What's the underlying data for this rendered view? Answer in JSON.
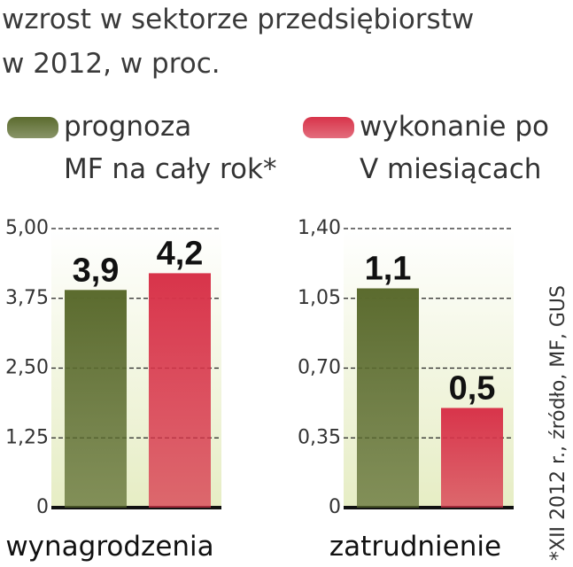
{
  "title": [
    "wzrost w sektorze przedsiębiorstw",
    "w 2012,  w proc."
  ],
  "legend": [
    {
      "lines": [
        "prognoza",
        "MF na cały rok*"
      ],
      "color": "#5b6b2e"
    },
    {
      "lines": [
        "wykonanie po",
        "V miesiącach"
      ],
      "color": "#d8344a"
    }
  ],
  "note": "*XII 2012 r., źródło, MF, GUS",
  "chart_data": [
    {
      "type": "bar",
      "xlabel": "wynagrodzenia",
      "values": [
        3.9,
        4.2
      ],
      "value_labels": [
        "3,9",
        "4,2"
      ],
      "colors": [
        "#5b6b2e",
        "#d8344a"
      ],
      "ylim": [
        0,
        5
      ],
      "yticks": [
        0,
        {
          "value": 1.25,
          "label": "1,25"
        },
        {
          "value": 2.5,
          "label": "2,50"
        },
        {
          "value": 3.75,
          "label": "3,75"
        },
        {
          "value": 5,
          "label": "5,00"
        }
      ],
      "grid": true
    },
    {
      "type": "bar",
      "xlabel": "zatrudnienie",
      "values": [
        1.1,
        0.5
      ],
      "value_labels": [
        "1,1",
        "0,5"
      ],
      "colors": [
        "#5b6b2e",
        "#d8344a"
      ],
      "ylim": [
        0,
        1.4
      ],
      "yticks": [
        0,
        {
          "value": 0.35,
          "label": "0,35"
        },
        {
          "value": 0.7,
          "label": "0,70"
        },
        {
          "value": 1.05,
          "label": "1,05"
        },
        {
          "value": 1.4,
          "label": "1,40"
        }
      ],
      "grid": true
    }
  ]
}
